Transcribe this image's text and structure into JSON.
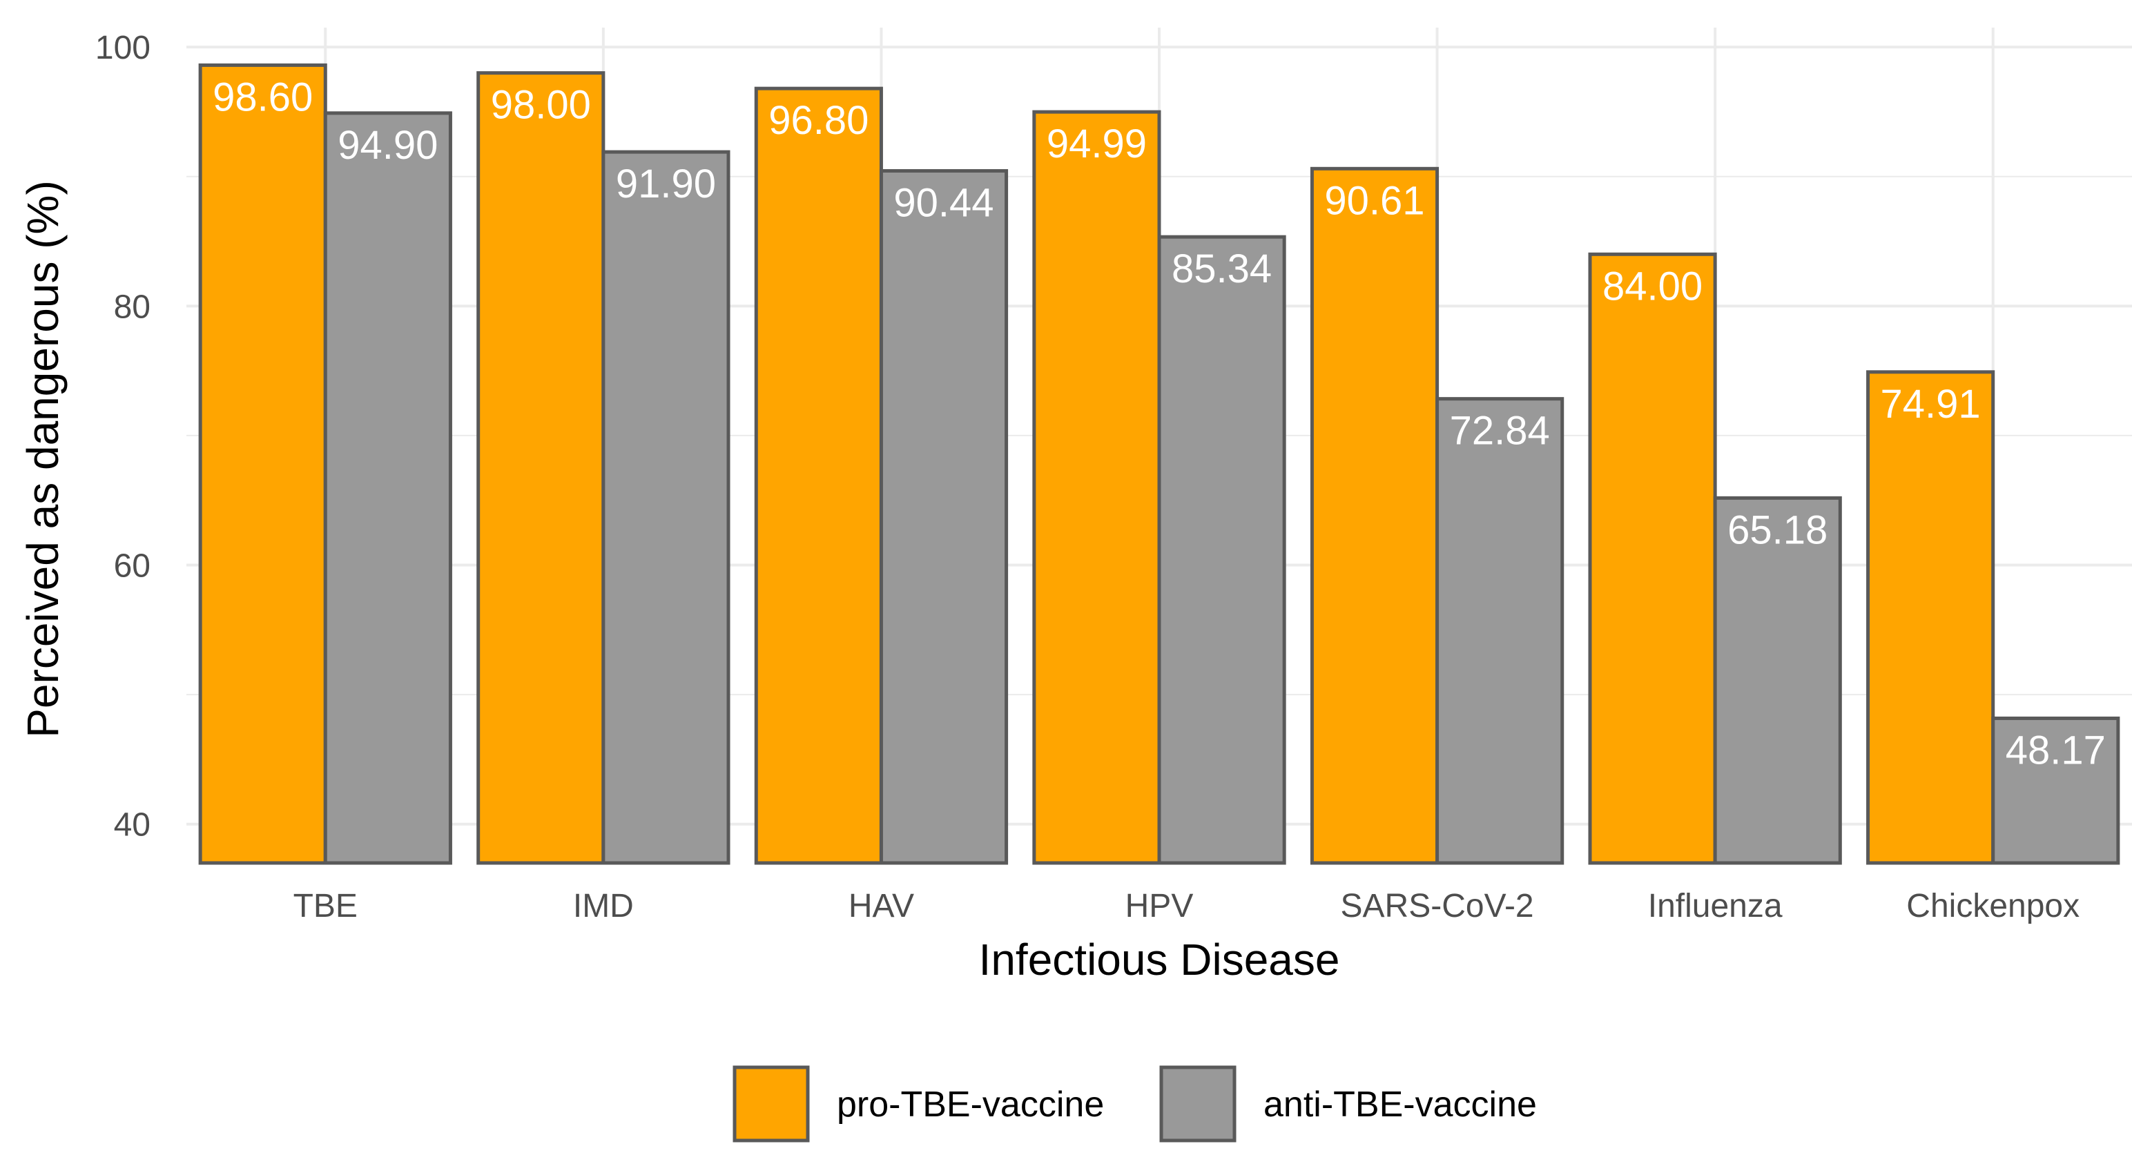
{
  "chart_data": {
    "type": "bar",
    "title": "",
    "xlabel": "Infectious Disease",
    "ylabel": "Perceived as dangerous (%)",
    "ylim": [
      37,
      101.5
    ],
    "yticks": [
      40,
      60,
      80,
      100
    ],
    "grid": true,
    "legend_position": "bottom",
    "categories": [
      "TBE",
      "IMD",
      "HAV",
      "HPV",
      "SARS-CoV-2",
      "Influenza",
      "Chickenpox"
    ],
    "series": [
      {
        "name": "pro-TBE-vaccine",
        "color": "#FFA500",
        "values": [
          98.6,
          98.0,
          96.8,
          94.99,
          90.61,
          84.0,
          74.91
        ],
        "labels": [
          "98.60",
          "98.00",
          "96.80",
          "94.99",
          "90.61",
          "84.00",
          "74.91"
        ]
      },
      {
        "name": "anti-TBE-vaccine",
        "color": "#999999",
        "values": [
          94.9,
          91.9,
          90.44,
          85.34,
          72.84,
          65.18,
          48.17
        ],
        "labels": [
          "94.90",
          "91.90",
          "90.44",
          "85.34",
          "72.84",
          "65.18",
          "48.17"
        ]
      }
    ],
    "bar_outline_color": "#595959",
    "grid_color": "#ebebeb"
  }
}
